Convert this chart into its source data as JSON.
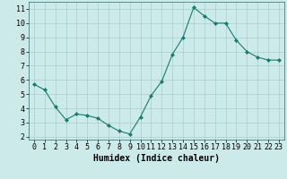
{
  "x": [
    0,
    1,
    2,
    3,
    4,
    5,
    6,
    7,
    8,
    9,
    10,
    11,
    12,
    13,
    14,
    15,
    16,
    17,
    18,
    19,
    20,
    21,
    22,
    23
  ],
  "y": [
    5.7,
    5.3,
    4.1,
    3.2,
    3.6,
    3.5,
    3.3,
    2.8,
    2.4,
    2.2,
    3.4,
    4.9,
    5.9,
    7.8,
    9.0,
    11.1,
    10.5,
    10.0,
    10.0,
    8.8,
    8.0,
    7.6,
    7.4,
    7.4
  ],
  "line_color": "#1a7a6e",
  "marker": "D",
  "marker_size": 2,
  "bg_color": "#cceaea",
  "grid_color": "#aacccc",
  "xlabel": "Humidex (Indice chaleur)",
  "xlabel_fontsize": 7,
  "xlim": [
    -0.5,
    23.5
  ],
  "ylim": [
    1.8,
    11.5
  ],
  "yticks": [
    2,
    3,
    4,
    5,
    6,
    7,
    8,
    9,
    10,
    11
  ],
  "xticks": [
    0,
    1,
    2,
    3,
    4,
    5,
    6,
    7,
    8,
    9,
    10,
    11,
    12,
    13,
    14,
    15,
    16,
    17,
    18,
    19,
    20,
    21,
    22,
    23
  ],
  "tick_fontsize": 6
}
